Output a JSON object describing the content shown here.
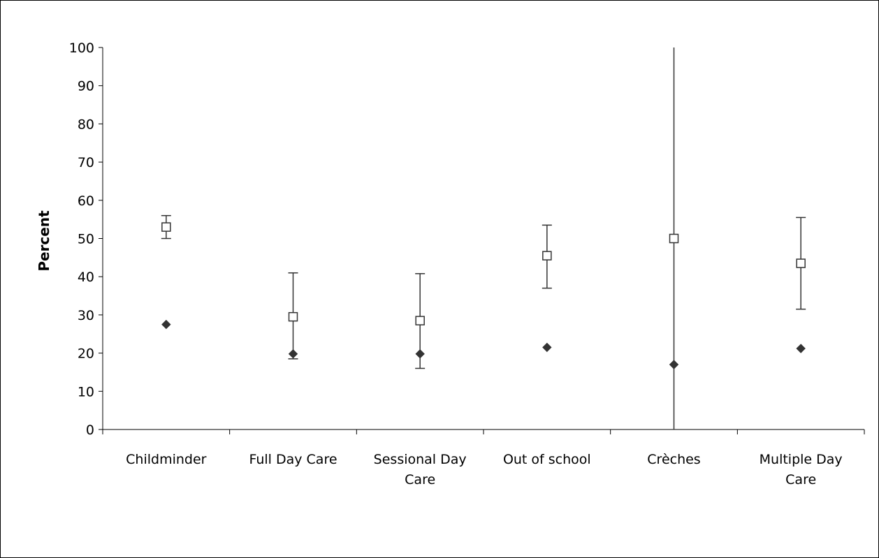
{
  "chart_data": {
    "type": "scatter",
    "title": "",
    "xlabel": "",
    "ylabel": "Percent",
    "ylim": [
      0,
      100
    ],
    "yticks": [
      0,
      10,
      20,
      30,
      40,
      50,
      60,
      70,
      80,
      90,
      100
    ],
    "grid": false,
    "legend": "none",
    "categories": [
      [
        "Childminder"
      ],
      [
        "Full Day Care"
      ],
      [
        "Sessional Day",
        "Care"
      ],
      [
        "Out of school"
      ],
      [
        "Crèches"
      ],
      [
        "Multiple Day",
        "Care"
      ]
    ],
    "series": [
      {
        "marker": "open-square",
        "color": "#333333",
        "values": [
          53,
          29.5,
          28.5,
          45.5,
          50,
          43.5
        ],
        "error_low": [
          50,
          18.5,
          16,
          37,
          0,
          31.5
        ],
        "error_high": [
          56,
          41,
          40.8,
          53.5,
          100,
          55.5
        ]
      },
      {
        "marker": "filled-diamond",
        "color": "#333333",
        "values": [
          27.5,
          19.8,
          19.8,
          21.5,
          17,
          21.2
        ]
      }
    ]
  }
}
